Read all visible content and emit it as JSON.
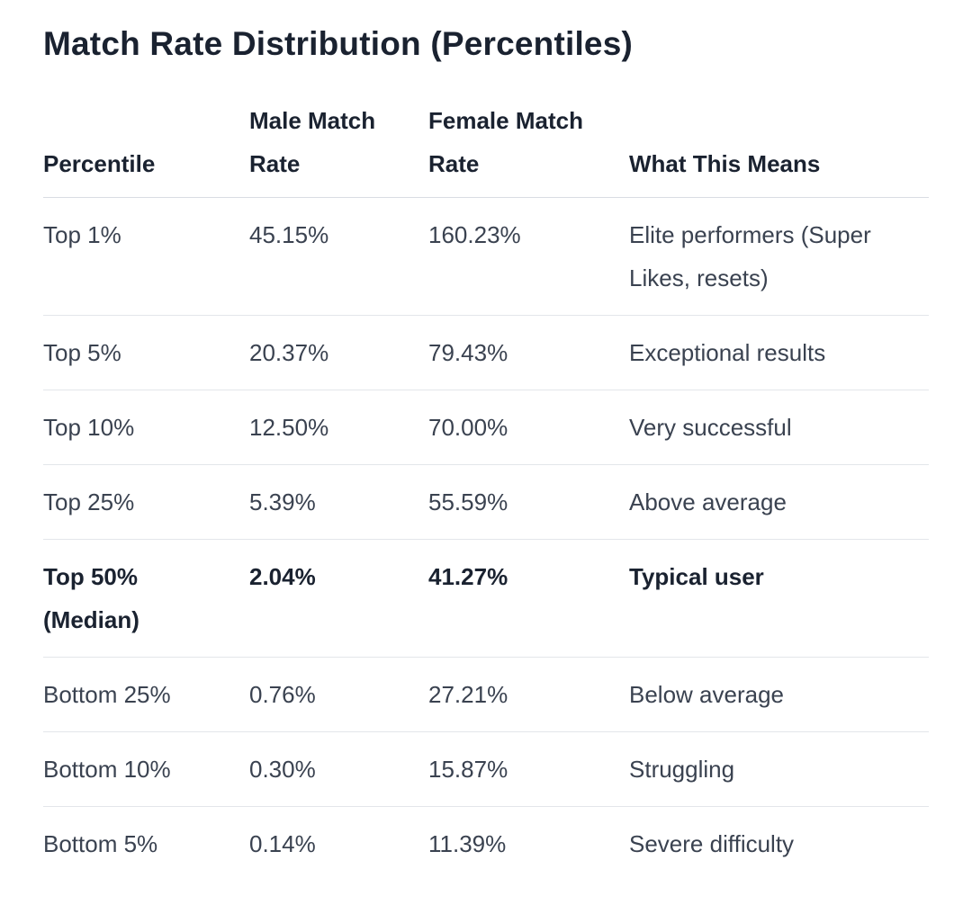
{
  "title": "Match Rate Distribution (Percentiles)",
  "headers": {
    "percentile": "Percentile",
    "male": "Male Match Rate",
    "female": "Female Match Rate",
    "meaning": "What This Means"
  },
  "rows": [
    {
      "percentile": "Top 1%",
      "male": "45.15%",
      "female": "160.23%",
      "meaning": "Elite performers (Super Likes, resets)"
    },
    {
      "percentile": "Top 5%",
      "male": "20.37%",
      "female": "79.43%",
      "meaning": "Exceptional results"
    },
    {
      "percentile": "Top 10%",
      "male": "12.50%",
      "female": "70.00%",
      "meaning": "Very successful"
    },
    {
      "percentile": "Top 25%",
      "male": "5.39%",
      "female": "55.59%",
      "meaning": "Above average"
    },
    {
      "percentile": "Top 50% (Median)",
      "male": "2.04%",
      "female": "41.27%",
      "meaning": "Typical user"
    },
    {
      "percentile": "Bottom 25%",
      "male": "0.76%",
      "female": "27.21%",
      "meaning": "Below average"
    },
    {
      "percentile": "Bottom 10%",
      "male": "0.30%",
      "female": "15.87%",
      "meaning": "Struggling"
    },
    {
      "percentile": "Bottom 5%",
      "male": "0.14%",
      "female": "11.39%",
      "meaning": "Severe difficulty"
    }
  ]
}
